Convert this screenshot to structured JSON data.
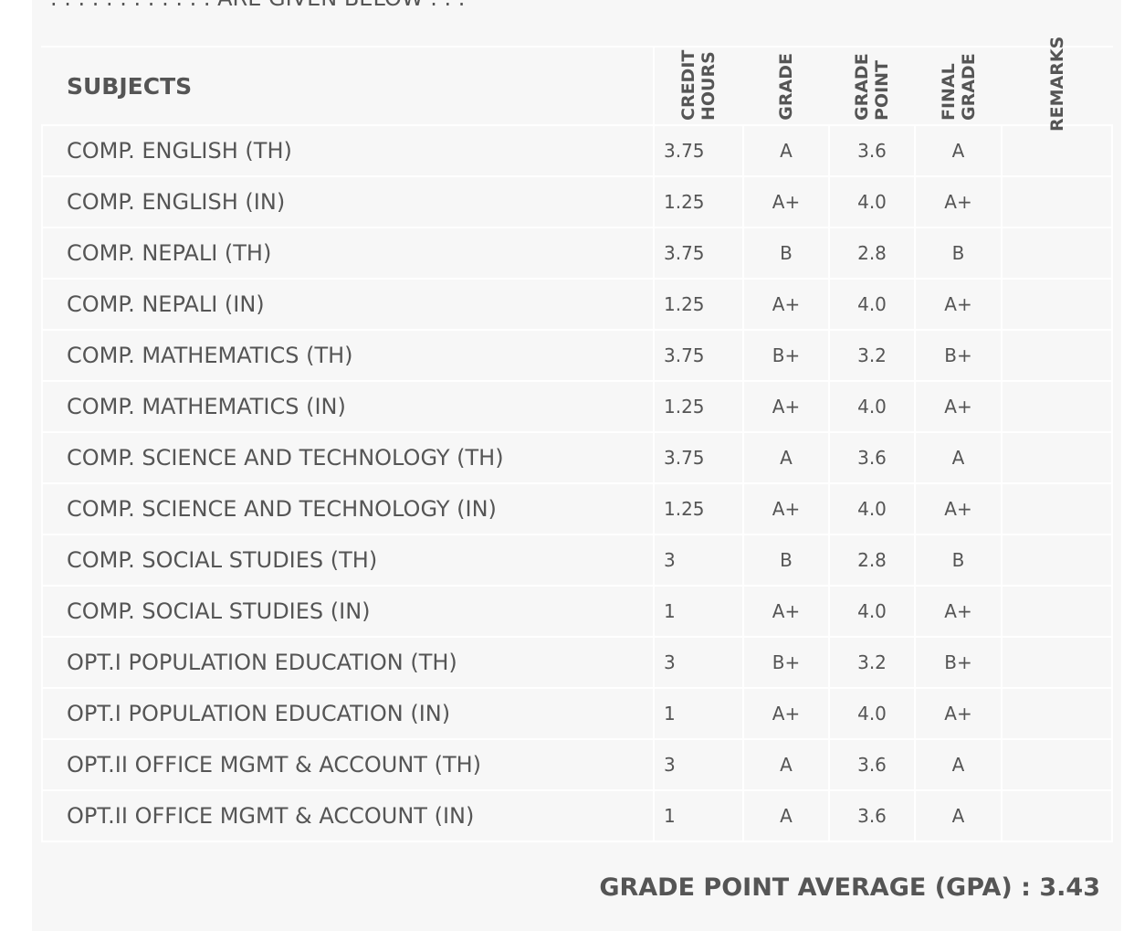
{
  "intro": ". . . . . . . . . . . . ARE GIVEN BELOW . . .",
  "table": {
    "headers": [
      "SUBJECTS",
      "CREDIT HOURS",
      "GRADE",
      "GRADE POINT",
      "FINAL GRADE",
      "REMARKS"
    ],
    "rows": [
      [
        "COMP. ENGLISH (TH)",
        "3.75",
        "A",
        "3.6",
        "A"
      ],
      [
        "COMP. ENGLISH (IN)",
        "1.25",
        "A+",
        "4.0",
        "A+"
      ],
      [
        "COMP. NEPALI (TH)",
        "3.75",
        "B",
        "2.8",
        "B"
      ],
      [
        "COMP. NEPALI (IN)",
        "1.25",
        "A+",
        "4.0",
        "A+"
      ],
      [
        "COMP. MATHEMATICS (TH)",
        "3.75",
        "B+",
        "3.2",
        "B+"
      ],
      [
        "COMP. MATHEMATICS (IN)",
        "1.25",
        "A+",
        "4.0",
        "A+"
      ],
      [
        "COMP. SCIENCE AND TECHNOLOGY (TH)",
        "3.75",
        "A",
        "3.6",
        "A"
      ],
      [
        "COMP. SCIENCE AND TECHNOLOGY (IN)",
        "1.25",
        "A+",
        "4.0",
        "A+"
      ],
      [
        "COMP. SOCIAL STUDIES (TH)",
        "3",
        "B",
        "2.8",
        "B"
      ],
      [
        "COMP. SOCIAL STUDIES (IN)",
        "1",
        "A+",
        "4.0",
        "A+"
      ],
      [
        "OPT.I POPULATION EDUCATION (TH)",
        "3",
        "B+",
        "3.2",
        "B+"
      ],
      [
        "OPT.I POPULATION EDUCATION (IN)",
        "1",
        "A+",
        "4.0",
        "A+"
      ],
      [
        "OPT.II OFFICE MGMT & ACCOUNT (TH)",
        "3",
        "A",
        "3.6",
        "A"
      ],
      [
        "OPT.II OFFICE MGMT & ACCOUNT (IN)",
        "1",
        "A",
        "3.6",
        "A"
      ]
    ]
  },
  "gpa": {
    "label": "GRADE POINT AVERAGE (GPA) :",
    "value": "3.43"
  }
}
